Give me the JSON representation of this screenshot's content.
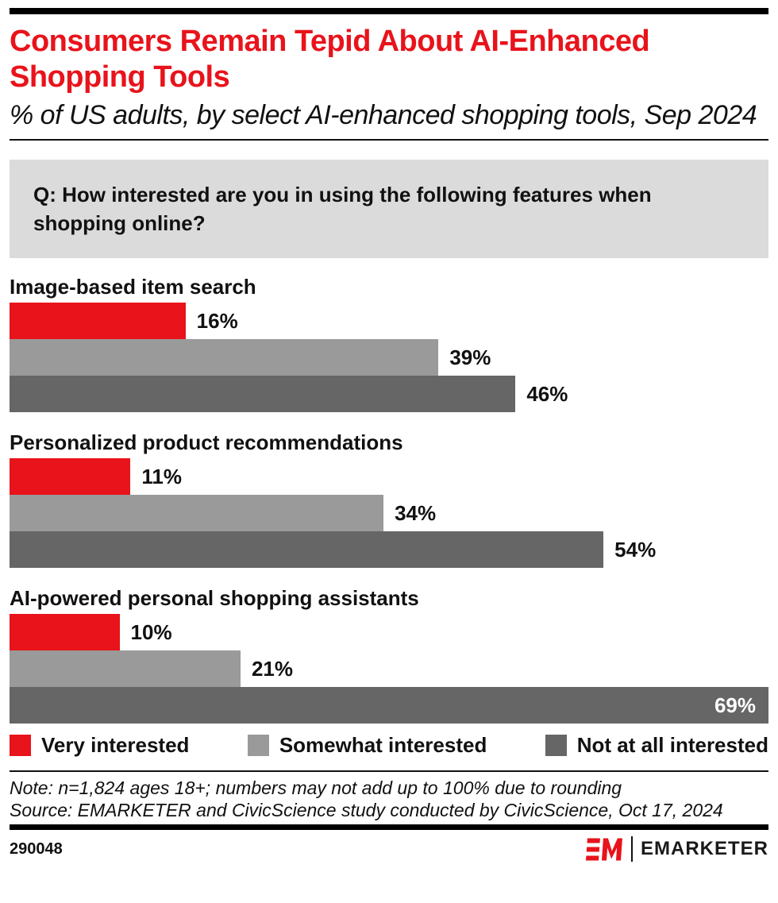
{
  "header": {
    "title": "Consumers Remain Tepid About AI-Enhanced Shopping Tools",
    "subtitle": "% of US adults, by select AI-enhanced shopping tools, Sep 2024"
  },
  "question": {
    "text": "Q: How interested are you in using the following features when shopping online?"
  },
  "chart_data": {
    "type": "bar",
    "orientation": "horizontal",
    "unit": "%",
    "scale_max": 69,
    "grid": false,
    "legend_position": "bottom",
    "categories": [
      "Image-based item search",
      "Personalized product recommendations",
      "AI-powered personal shopping assistants"
    ],
    "series": [
      {
        "name": "Very interested",
        "color": "#e8131b",
        "values": [
          16,
          11,
          10
        ]
      },
      {
        "name": "Somewhat interested",
        "color": "#9a9a9a",
        "values": [
          39,
          34,
          21
        ]
      },
      {
        "name": "Not at all interested",
        "color": "#666666",
        "values": [
          46,
          54,
          69
        ]
      }
    ]
  },
  "notes": {
    "note": "Note: n=1,824 ages 18+; numbers may not add up to 100% due to rounding",
    "source": "Source: EMARKETER and CivicScience study conducted by CivicScience, Oct 17, 2024"
  },
  "footer": {
    "chart_id": "290048",
    "brand": "EMARKETER"
  },
  "colors": {
    "brand_red": "#e8131b",
    "mid_gray": "#9a9a9a",
    "dark_gray": "#666666",
    "question_box_bg": "#dbdbdb",
    "rule_black": "#000000",
    "inside_label_text": "#ffffff"
  }
}
